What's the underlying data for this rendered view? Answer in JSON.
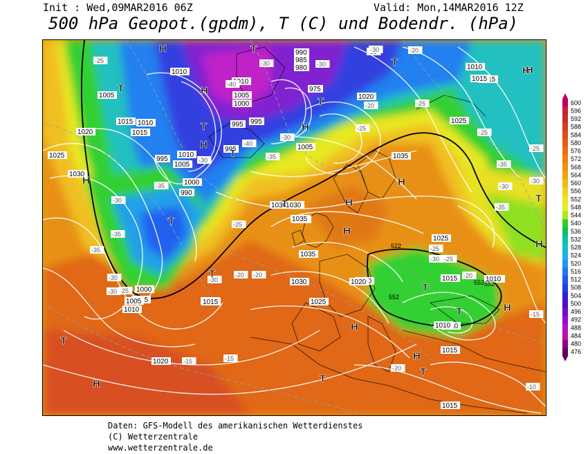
{
  "header": {
    "init": "Init : Wed,09MAR2016 06Z",
    "valid": "Valid: Mon,14MAR2016 12Z",
    "title": "500 hPa Geopot.(gpdm), T (C) und Bodendr. (hPa)"
  },
  "legend": {
    "values": [
      "600",
      "596",
      "592",
      "588",
      "584",
      "580",
      "576",
      "572",
      "568",
      "564",
      "560",
      "556",
      "552",
      "548",
      "544",
      "540",
      "536",
      "532",
      "528",
      "524",
      "520",
      "516",
      "512",
      "508",
      "504",
      "500",
      "496",
      "492",
      "488",
      "484",
      "480",
      "476"
    ],
    "colors": [
      "#c00060",
      "#c8203c",
      "#c83028",
      "#d04020",
      "#d85020",
      "#e06018",
      "#e87018",
      "#f08010",
      "#f09010",
      "#f0a010",
      "#f0b818",
      "#f0d020",
      "#f0e020",
      "#e0f020",
      "#a8e818",
      "#30d020",
      "#10c060",
      "#10c0a0",
      "#10c0d0",
      "#20b0e8",
      "#2098f0",
      "#2078f0",
      "#2058e8",
      "#2040e0",
      "#3020d0",
      "#5010c0",
      "#7010c0",
      "#9010c8",
      "#b010c8",
      "#c010a0",
      "#900090",
      "#600060"
    ]
  },
  "map": {
    "pressure_labels": [
      {
        "text": "1005"
      },
      {
        "text": "1010"
      },
      {
        "text": "1015"
      },
      {
        "text": "1020"
      },
      {
        "text": "1025"
      },
      {
        "text": "1030"
      },
      {
        "text": "1010"
      },
      {
        "text": "1005"
      },
      {
        "text": "1000"
      },
      {
        "text": "990"
      },
      {
        "text": "995"
      },
      {
        "text": "1010"
      },
      {
        "text": "1005"
      },
      {
        "text": "1000"
      },
      {
        "text": "990"
      },
      {
        "text": "985"
      },
      {
        "text": "980"
      },
      {
        "text": "975"
      },
      {
        "text": "995"
      },
      {
        "text": "1005"
      },
      {
        "text": "995"
      },
      {
        "text": "1010"
      },
      {
        "text": "1015"
      },
      {
        "text": "1020"
      },
      {
        "text": "1025"
      },
      {
        "text": "1030"
      },
      {
        "text": "1035"
      },
      {
        "text": "1035"
      },
      {
        "text": "1035"
      },
      {
        "text": "1030"
      },
      {
        "text": "1030"
      },
      {
        "text": "1025"
      },
      {
        "text": "1020"
      },
      {
        "text": "1015"
      },
      {
        "text": "1010"
      },
      {
        "text": "1015"
      },
      {
        "text": "1010"
      },
      {
        "text": "1015"
      },
      {
        "text": "1025"
      },
      {
        "text": "1020"
      },
      {
        "text": "1015"
      },
      {
        "text": "1015"
      },
      {
        "text": "1015"
      },
      {
        "text": "1000"
      },
      {
        "text": "1005"
      },
      {
        "text": "1010"
      },
      {
        "text": "1015"
      },
      {
        "text": "1020"
      },
      {
        "text": "1010"
      },
      {
        "text": "1010"
      },
      {
        "text": "1035"
      },
      {
        "text": "1030"
      },
      {
        "text": "995"
      },
      {
        "text": "1015"
      },
      {
        "text": "1010"
      }
    ],
    "temp_labels": [
      {
        "text": "-25"
      },
      {
        "text": "-30"
      },
      {
        "text": "-35"
      },
      {
        "text": "-40"
      },
      {
        "text": "-30"
      },
      {
        "text": "-35"
      },
      {
        "text": "-30"
      },
      {
        "text": "-35"
      },
      {
        "text": "-40"
      },
      {
        "text": "-35"
      },
      {
        "text": "-30"
      },
      {
        "text": "-30"
      },
      {
        "text": "-25"
      },
      {
        "text": "-20"
      },
      {
        "text": "-30"
      },
      {
        "text": "-25"
      },
      {
        "text": "-30"
      },
      {
        "text": "-25"
      },
      {
        "text": "-35"
      },
      {
        "text": "-30"
      },
      {
        "text": "-25"
      },
      {
        "text": "-20"
      },
      {
        "text": "-20"
      },
      {
        "text": "-15"
      },
      {
        "text": "-15"
      },
      {
        "text": "-20"
      },
      {
        "text": "-25"
      },
      {
        "text": "-30"
      },
      {
        "text": "-25"
      },
      {
        "text": "-20"
      },
      {
        "text": "-25"
      },
      {
        "text": "-10"
      },
      {
        "text": "-15"
      },
      {
        "text": "-30"
      },
      {
        "text": "-25"
      },
      {
        "text": "-35"
      },
      {
        "text": "-30"
      },
      {
        "text": "-30"
      },
      {
        "text": "-25"
      },
      {
        "text": "-20"
      }
    ],
    "centers": [
      {
        "text": "H"
      },
      {
        "text": "T"
      },
      {
        "text": "T"
      },
      {
        "text": "H"
      },
      {
        "text": "T"
      },
      {
        "text": "H"
      },
      {
        "text": "T"
      },
      {
        "text": "H"
      },
      {
        "text": "T"
      },
      {
        "text": "T"
      },
      {
        "text": "H"
      },
      {
        "text": "T"
      },
      {
        "text": "H"
      },
      {
        "text": "H"
      },
      {
        "text": "H"
      },
      {
        "text": "T"
      },
      {
        "text": "T"
      },
      {
        "text": "H"
      },
      {
        "text": "T"
      },
      {
        "text": "H"
      },
      {
        "text": "T"
      },
      {
        "text": "H"
      },
      {
        "text": "T"
      },
      {
        "text": "H"
      },
      {
        "text": "T"
      },
      {
        "text": "T"
      },
      {
        "text": "H"
      },
      {
        "text": "T"
      },
      {
        "text": "H"
      },
      {
        "text": "H"
      }
    ],
    "contour_labels": [
      {
        "text": "552"
      },
      {
        "text": "552"
      },
      {
        "text": "552"
      },
      {
        "text": "522"
      }
    ]
  },
  "footer": {
    "line1": "Daten: GFS-Modell des amerikanischen Wetterdienstes",
    "line2": "(C) Wetterzentrale",
    "line3": "www.wetterzentrale.de"
  }
}
